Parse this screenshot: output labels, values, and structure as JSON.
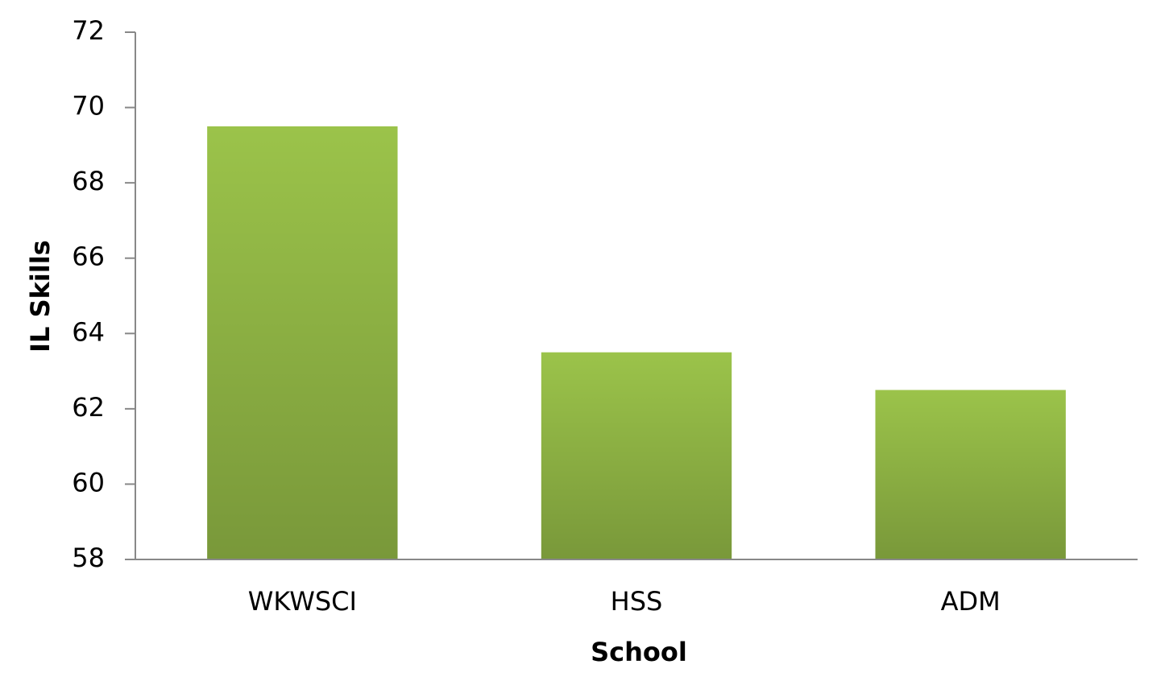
{
  "chart_data": {
    "type": "bar",
    "x_label": "School",
    "y_label": "IL Skills",
    "categories": [
      "WKWSCI",
      "HSS",
      "ADM"
    ],
    "values": [
      69.5,
      63.5,
      62.5
    ],
    "color": "#9bc34a",
    "ylim": [
      58,
      72
    ],
    "yticks": [
      58,
      60,
      62,
      64,
      66,
      68,
      70,
      72
    ],
    "grid": false
  }
}
